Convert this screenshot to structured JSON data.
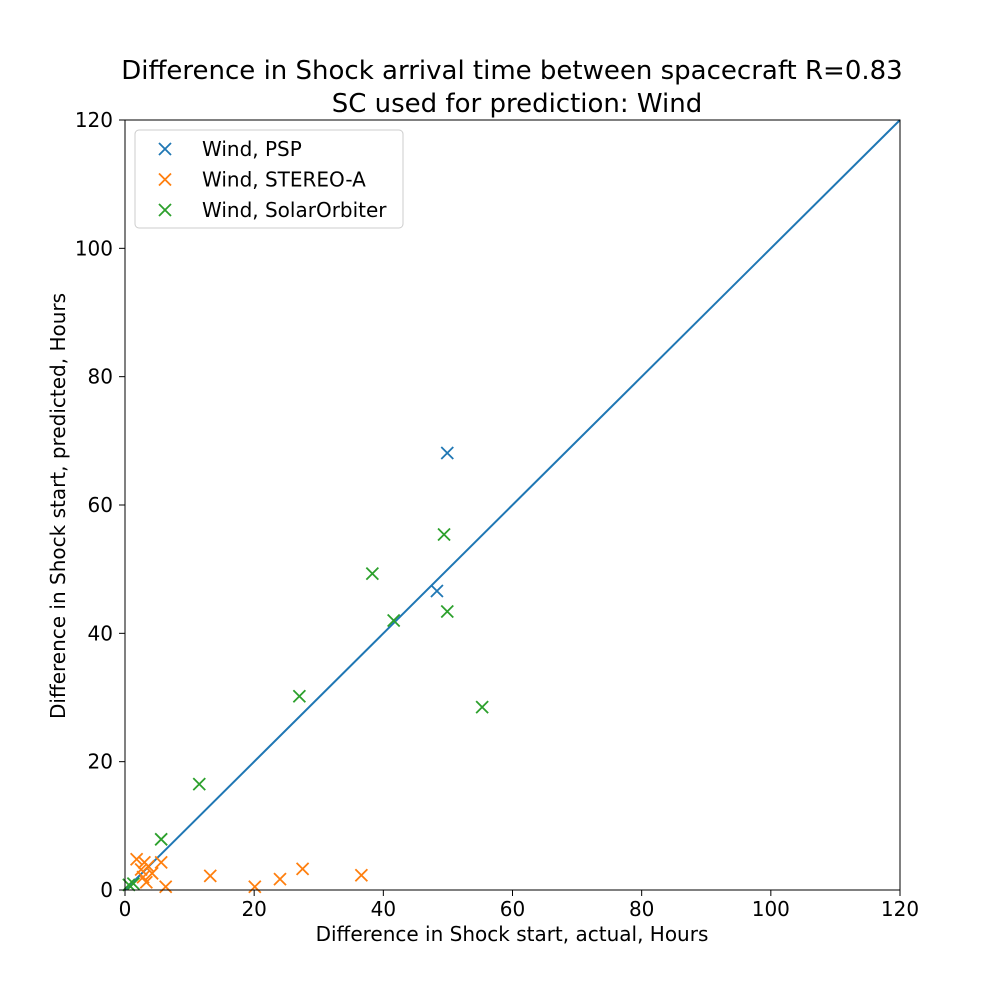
{
  "chart_data": {
    "type": "scatter",
    "title": "Difference in Shock arrival time between spacecraft  R=0.83",
    "subtitle": "SC used for prediction: Wind",
    "xlabel": "Difference in Shock start, actual, Hours",
    "ylabel": "Difference in Shock start, predicted, Hours",
    "xlim": [
      0,
      120
    ],
    "ylim": [
      0,
      120
    ],
    "xticks": [
      0,
      20,
      40,
      60,
      80,
      100,
      120
    ],
    "yticks": [
      0,
      20,
      40,
      60,
      80,
      100,
      120
    ],
    "grid": false,
    "legend_position": "upper-left",
    "reference_line": {
      "x": [
        0,
        120
      ],
      "y": [
        0,
        120
      ],
      "color": "#1f77b4"
    },
    "series": [
      {
        "name": "Wind, PSP",
        "color": "#1f77b4",
        "marker": "x",
        "points": [
          {
            "x": 49.9,
            "y": 68.1
          },
          {
            "x": 48.3,
            "y": 46.6
          }
        ]
      },
      {
        "name": "Wind, STEREO-A",
        "color": "#ff7f0e",
        "marker": "x",
        "points": [
          {
            "x": 1.8,
            "y": 4.8
          },
          {
            "x": 2.5,
            "y": 3.2
          },
          {
            "x": 2.8,
            "y": 2.0
          },
          {
            "x": 3.0,
            "y": 4.3
          },
          {
            "x": 3.3,
            "y": 1.2
          },
          {
            "x": 3.6,
            "y": 3.7
          },
          {
            "x": 4.2,
            "y": 2.6
          },
          {
            "x": 5.6,
            "y": 4.3
          },
          {
            "x": 6.3,
            "y": 0.5
          },
          {
            "x": 13.2,
            "y": 2.2
          },
          {
            "x": 20.1,
            "y": 0.5
          },
          {
            "x": 24.0,
            "y": 1.7
          },
          {
            "x": 27.5,
            "y": 3.3
          },
          {
            "x": 36.6,
            "y": 2.3
          }
        ]
      },
      {
        "name": "Wind, SolarOrbiter",
        "color": "#2ca02c",
        "marker": "x",
        "points": [
          {
            "x": 0.6,
            "y": 0.8
          },
          {
            "x": 1.3,
            "y": 1.0
          },
          {
            "x": 5.6,
            "y": 7.9
          },
          {
            "x": 11.5,
            "y": 16.5
          },
          {
            "x": 27.0,
            "y": 30.2
          },
          {
            "x": 38.3,
            "y": 49.3
          },
          {
            "x": 41.6,
            "y": 42.0
          },
          {
            "x": 49.4,
            "y": 55.4
          },
          {
            "x": 49.9,
            "y": 43.4
          },
          {
            "x": 55.3,
            "y": 28.5
          }
        ]
      }
    ]
  }
}
